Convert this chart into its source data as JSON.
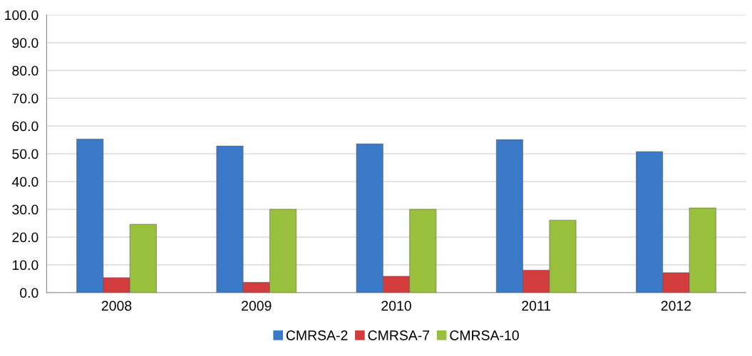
{
  "chart_data": {
    "type": "bar",
    "categories": [
      "2008",
      "2009",
      "2010",
      "2011",
      "2012"
    ],
    "series": [
      {
        "name": "CMRSA-2",
        "color": "#3a78c8",
        "values": [
          55.3,
          52.8,
          53.6,
          55.1,
          50.8
        ]
      },
      {
        "name": "CMRSA-7",
        "color": "#d23c3c",
        "values": [
          5.4,
          3.7,
          5.9,
          8.1,
          7.2
        ]
      },
      {
        "name": "CMRSA-10",
        "color": "#98c03c",
        "values": [
          24.6,
          30.0,
          30.0,
          26.1,
          30.5
        ]
      }
    ],
    "ylim": [
      0,
      100
    ],
    "yticks": [
      {
        "value": 0,
        "label": "0.0"
      },
      {
        "value": 10,
        "label": "10.0"
      },
      {
        "value": 20,
        "label": "20.0"
      },
      {
        "value": 30,
        "label": "30.0"
      },
      {
        "value": 40,
        "label": "40.0"
      },
      {
        "value": 50,
        "label": "50.0"
      },
      {
        "value": 60,
        "label": "60.0"
      },
      {
        "value": 70,
        "label": "70.0"
      },
      {
        "value": 80,
        "label": "80.0"
      },
      {
        "value": 90,
        "label": "90.0"
      },
      {
        "value": 100,
        "label": "100.0"
      }
    ],
    "grid": "y",
    "legend": "bottom"
  }
}
